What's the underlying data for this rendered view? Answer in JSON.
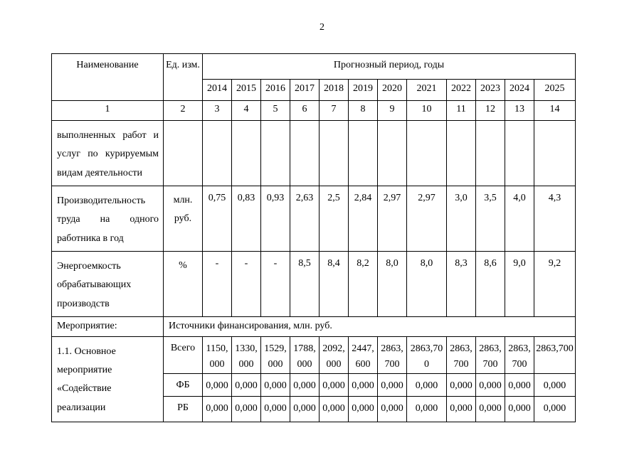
{
  "page": {
    "number": "2"
  },
  "table": {
    "header": {
      "col1": "Наименование",
      "col2": "Ед. изм.",
      "period_title": "Прогнозный период, годы",
      "years": [
        "2014",
        "2015",
        "2016",
        "2017",
        "2018",
        "2019",
        "2020",
        "2021",
        "2022",
        "2023",
        "2024",
        "2025"
      ],
      "index_row": [
        "1",
        "2",
        "3",
        "4",
        "5",
        "6",
        "7",
        "8",
        "9",
        "10",
        "11",
        "12",
        "13",
        "14"
      ]
    },
    "rows": [
      {
        "name": "выполненных работ и услуг по курируемым видам деятельности",
        "unit": "",
        "values": [
          "",
          "",
          "",
          "",
          "",
          "",
          "",
          "",
          "",
          "",
          "",
          ""
        ]
      },
      {
        "name": "Производительность труда на одного работника в год",
        "unit": "млн. руб.",
        "values": [
          "0,75",
          "0,83",
          "0,93",
          "2,63",
          "2,5",
          "2,84",
          "2,97",
          "2,97",
          "3,0",
          "3,5",
          "4,0",
          "4,3"
        ]
      },
      {
        "name": "Энергоемкость обрабатывающих производств",
        "unit": "%",
        "values": [
          "-",
          "-",
          "-",
          "8,5",
          "8,4",
          "8,2",
          "8,0",
          "8,0",
          "8,3",
          "8,6",
          "9,0",
          "9,2"
        ]
      }
    ],
    "measure_row": {
      "label": "Мероприятие:",
      "text": "Источники финансирования, млн. руб."
    },
    "program": {
      "name": "1.1. Основное мероприятие «Содействие реализации",
      "funding": [
        {
          "source": "Всего",
          "values": [
            "1150,000",
            "1330,000",
            "1529,000",
            "1788,000",
            "2092,000",
            "2447,600",
            "2863,700",
            "2863,700",
            "2863,700",
            "2863,700",
            "2863,700",
            "2863,700"
          ]
        },
        {
          "source": "ФБ",
          "values": [
            "0,000",
            "0,000",
            "0,000",
            "0,000",
            "0,000",
            "0,000",
            "0,000",
            "0,000",
            "0,000",
            "0,000",
            "0,000",
            "0,000"
          ]
        },
        {
          "source": "РБ",
          "values": [
            "0,000",
            "0,000",
            "0,000",
            "0,000",
            "0,000",
            "0,000",
            "0,000",
            "0,000",
            "0,000",
            "0,000",
            "0,000",
            "0,000"
          ]
        }
      ]
    }
  }
}
